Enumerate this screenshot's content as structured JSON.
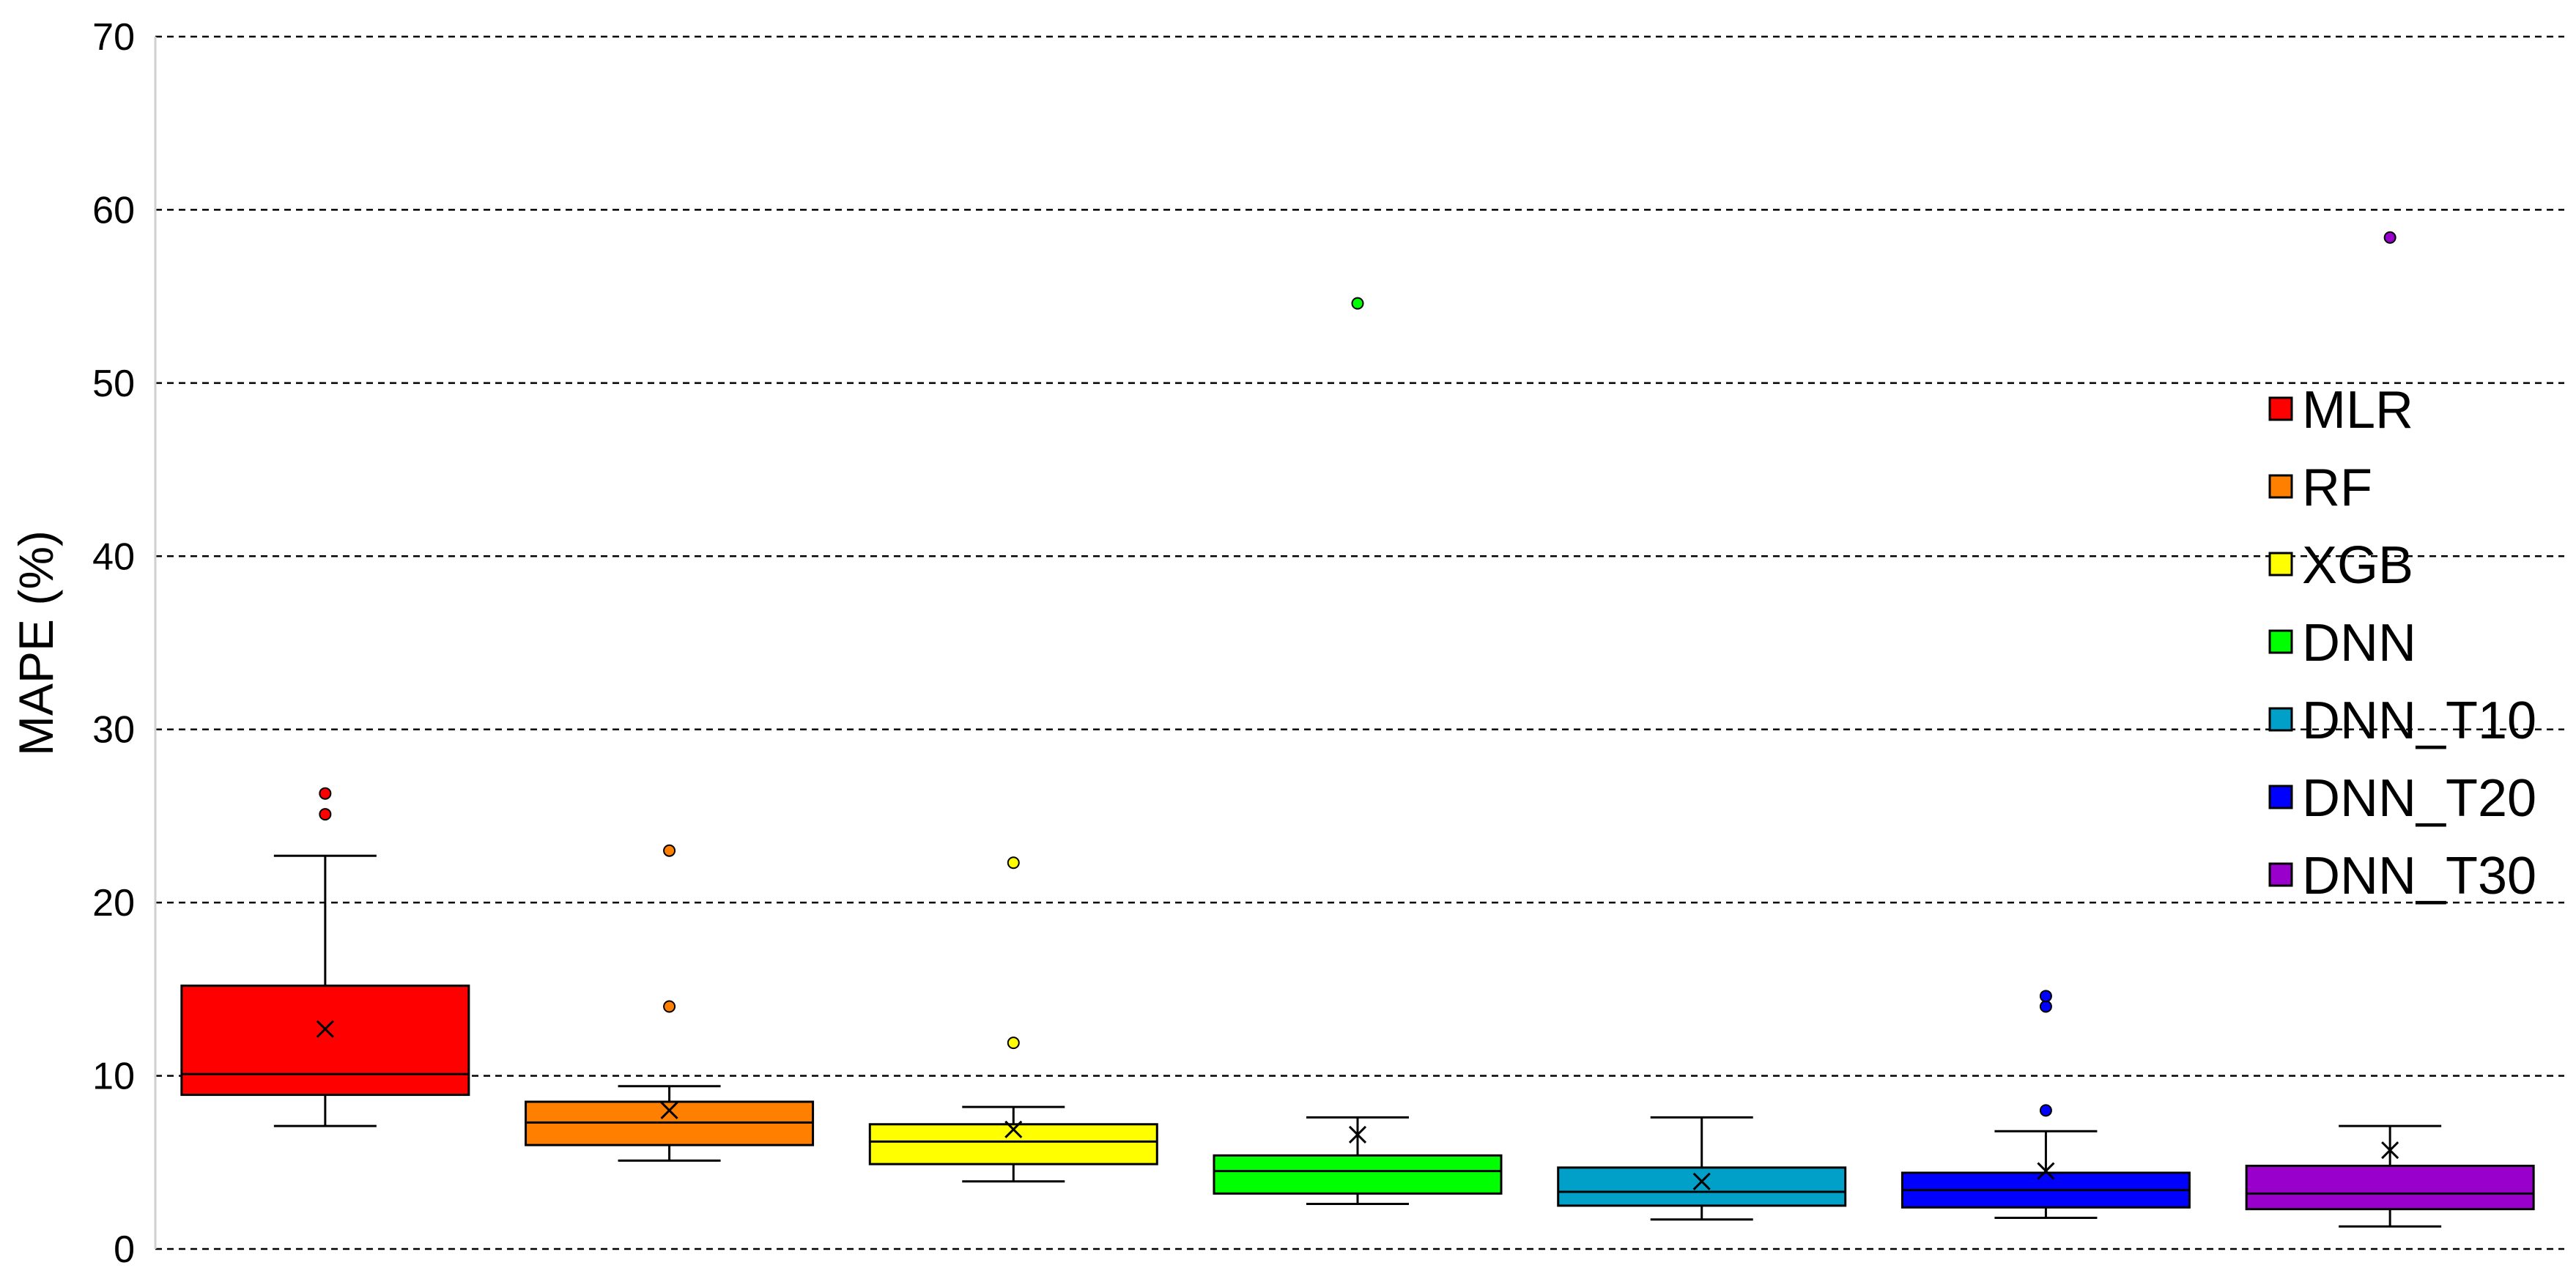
{
  "chart_data": {
    "type": "box",
    "ylabel": "MAPE (%)",
    "ylim": [
      0,
      70
    ],
    "yticks": [
      "0",
      "10",
      "20",
      "30",
      "40",
      "50",
      "60",
      "70"
    ],
    "grid": true,
    "legend_position": "right",
    "series": [
      {
        "name": "MLR",
        "color": "#ff0000",
        "min": 7.1,
        "q1": 8.9,
        "median": 10.1,
        "q3": 15.2,
        "max": 22.7,
        "mean": 12.7,
        "outliers": [
          25.1,
          26.3
        ]
      },
      {
        "name": "RF",
        "color": "#ff8000",
        "min": 5.1,
        "q1": 6.0,
        "median": 7.3,
        "q3": 8.5,
        "max": 9.4,
        "mean": 8.0,
        "outliers": [
          14.0,
          23.0
        ]
      },
      {
        "name": "XGB",
        "color": "#ffff00",
        "min": 3.9,
        "q1": 4.9,
        "median": 6.2,
        "q3": 7.2,
        "max": 8.2,
        "mean": 6.9,
        "outliers": [
          11.9,
          22.3
        ]
      },
      {
        "name": "DNN",
        "color": "#00ff00",
        "min": 2.6,
        "q1": 3.2,
        "median": 4.5,
        "q3": 5.4,
        "max": 7.6,
        "mean": 6.6,
        "outliers": [
          54.6
        ]
      },
      {
        "name": "DNN_T10",
        "color": "#00a0c8",
        "min": 1.7,
        "q1": 2.5,
        "median": 3.3,
        "q3": 4.7,
        "max": 7.6,
        "mean": 3.9,
        "outliers": []
      },
      {
        "name": "DNN_T20",
        "color": "#0000ff",
        "min": 1.8,
        "q1": 2.4,
        "median": 3.4,
        "q3": 4.4,
        "max": 6.8,
        "mean": 4.5,
        "outliers": [
          8.0,
          14.0,
          14.6
        ]
      },
      {
        "name": "DNN_T30",
        "color": "#9900cc",
        "min": 1.3,
        "q1": 2.3,
        "median": 3.2,
        "q3": 4.8,
        "max": 7.1,
        "mean": 5.7,
        "outliers": [
          58.4
        ]
      }
    ]
  }
}
